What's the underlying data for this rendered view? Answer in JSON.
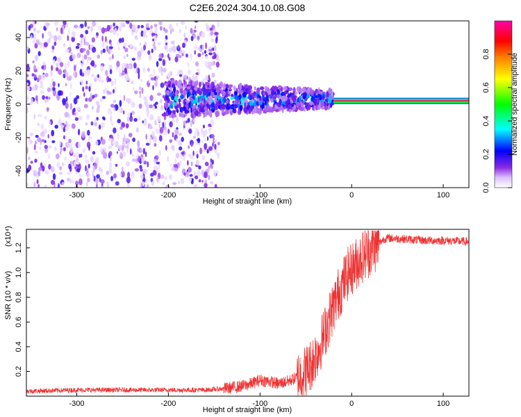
{
  "figure": {
    "title": "C2E6.2024.304.10.08.G08"
  },
  "chart_data": [
    {
      "type": "heatmap",
      "title": "C2E6.2024.304.10.08.G08",
      "xlabel": "Height of straight line (km)",
      "ylabel": "Frequency (Hz)",
      "xlim": [
        -355,
        128
      ],
      "ylim": [
        -50,
        50
      ],
      "xticks": [
        -300,
        -200,
        -100,
        0,
        100
      ],
      "yticks": [
        -40,
        -20,
        0,
        20,
        40
      ],
      "colorbar": {
        "label": "Normalized spectral amplitude",
        "range": [
          0.0,
          1.0
        ],
        "ticks": [
          0.0,
          0.2,
          0.4,
          0.6,
          0.8
        ],
        "tick_labels": [
          "0.0",
          "0.2",
          "0.4",
          "0.6",
          "0.8"
        ],
        "colormap": [
          "#ffffff",
          "#e6c8ff",
          "#8a2be2",
          "#0000ff",
          "#00ffff",
          "#00ff00",
          "#ffff00",
          "#ff8000",
          "#ff0000",
          "#ff00aa"
        ]
      },
      "regions": [
        {
          "x_range": [
            -355,
            -145
          ],
          "freq_center": 0,
          "freq_halfwidth": 50,
          "amplitude": 0.2,
          "pattern": "broadband noise"
        },
        {
          "x_range": [
            -205,
            -20
          ],
          "freq_center": 3,
          "freq_halfwidth": 11,
          "amplitude": 0.3,
          "pattern": "scattered band"
        },
        {
          "x_range": [
            -20,
            128
          ],
          "freq_center": 2,
          "freq_halfwidth": 1.5,
          "amplitude": 1.0,
          "pattern": "narrow tone"
        }
      ]
    },
    {
      "type": "line",
      "xlabel": "Height of straight line (km)",
      "ylabel": "SNR (10 * v/v)",
      "scale_label": "(x10⁴)",
      "xlim": [
        -355,
        128
      ],
      "ylim": [
        0.0,
        1.35
      ],
      "xticks": [
        -300,
        -200,
        -100,
        0,
        100
      ],
      "yticks": [
        0.2,
        0.4,
        0.6,
        0.8,
        1.0,
        1.2
      ],
      "ytick_labels": [
        "0.2",
        "0.4",
        "0.6",
        "0.8",
        "1.0",
        "1.2"
      ],
      "color": "#ee3333",
      "series": [
        {
          "x": [
            -355,
            -300,
            -250,
            -200,
            -160,
            -140,
            -120,
            -110,
            -100,
            -90,
            -80,
            -70,
            -60,
            -50,
            -45,
            -40,
            -35,
            -30,
            -25,
            -20,
            -15,
            -10,
            -5,
            0,
            5,
            10,
            15,
            20,
            25,
            30,
            35,
            40,
            60,
            80,
            100,
            128
          ],
          "values": [
            0.04,
            0.05,
            0.05,
            0.05,
            0.05,
            0.06,
            0.08,
            0.1,
            0.13,
            0.12,
            0.1,
            0.12,
            0.15,
            0.2,
            0.25,
            0.32,
            0.4,
            0.5,
            0.62,
            0.72,
            0.82,
            0.9,
            0.98,
            1.03,
            1.07,
            1.12,
            1.15,
            1.18,
            1.21,
            1.24,
            1.27,
            1.28,
            1.27,
            1.26,
            1.26,
            1.25
          ]
        }
      ]
    }
  ]
}
